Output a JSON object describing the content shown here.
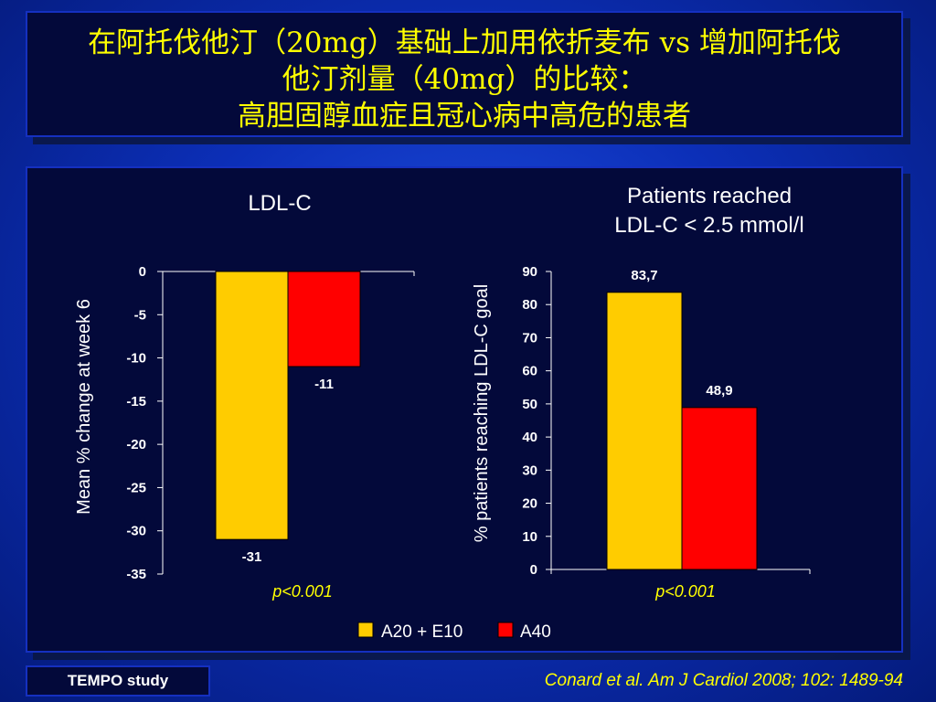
{
  "slide": {
    "title_lines": [
      "在阿托伐他汀（20mg）基础上加用依折麦布 vs 增加阿托伐",
      "他汀剂量（40mg）的比较：",
      "高胆固醇血症且冠心病中高危的患者"
    ],
    "study_label": "TEMPO study",
    "citation": "Conard et al. Am J Cardiol 2008; 102: 1489-94"
  },
  "colors": {
    "series_a": "#ffcc00",
    "series_b": "#ff0000",
    "title_text": "#ffff00",
    "panel_bg": "#03093a"
  },
  "legend": [
    {
      "label": "A20 + E10",
      "color": "#ffcc00"
    },
    {
      "label": "A40",
      "color": "#ff0000"
    }
  ],
  "chart_data": [
    {
      "type": "bar",
      "title": "LDL-C",
      "xlabel": "",
      "ylabel": "Mean % change at week 6",
      "ylim": [
        -35,
        0
      ],
      "yticks": [
        0,
        -5,
        -10,
        -15,
        -20,
        -25,
        -30,
        -35
      ],
      "series": [
        {
          "name": "A20 + E10",
          "values": [
            -31
          ],
          "labels": [
            "-31"
          ]
        },
        {
          "name": "A40",
          "values": [
            -11
          ],
          "labels": [
            "-11"
          ]
        }
      ],
      "annotation": "p<0.001"
    },
    {
      "type": "bar",
      "title_lines": [
        "Patients reached",
        "LDL-C < 2.5 mmol/l"
      ],
      "xlabel": "",
      "ylabel": "% patients reaching LDL-C goal",
      "ylim": [
        0,
        90
      ],
      "yticks": [
        90,
        80,
        70,
        60,
        50,
        40,
        30,
        20,
        10,
        0
      ],
      "series": [
        {
          "name": "A20 + E10",
          "values": [
            83.7
          ],
          "labels": [
            "83,7"
          ]
        },
        {
          "name": "A40",
          "values": [
            48.9
          ],
          "labels": [
            "48,9"
          ]
        }
      ],
      "annotation": "p<0.001"
    }
  ]
}
